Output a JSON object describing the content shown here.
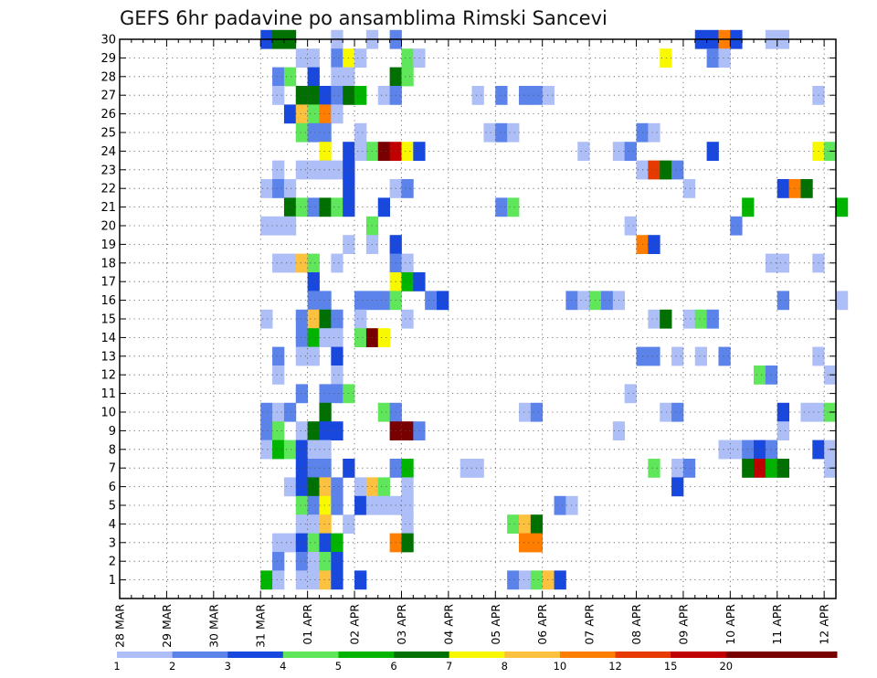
{
  "chart_data": {
    "type": "heatmap",
    "title": "GEFS 6hr padavine po ansamblima Rimski Sancevi",
    "y_ticks": [
      "1",
      "2",
      "3",
      "4",
      "5",
      "6",
      "7",
      "8",
      "9",
      "10",
      "11",
      "12",
      "13",
      "14",
      "15",
      "16",
      "17",
      "18",
      "19",
      "20",
      "21",
      "22",
      "23",
      "24",
      "25",
      "26",
      "27",
      "28",
      "29",
      "30"
    ],
    "x_ticks": [
      "28 MAR",
      "29 MAR",
      "30 MAR",
      "31 MAR",
      "01 APR",
      "02 APR",
      "03 APR",
      "04 APR",
      "05 APR",
      "06 APR",
      "07 APR",
      "08 APR",
      "09 APR",
      "10 APR",
      "11 APR",
      "12 APR"
    ],
    "x_range_steps": [
      0,
      61
    ],
    "y_range": [
      0,
      30
    ],
    "grid": true,
    "legend": {
      "placement": "bottom",
      "labels": [
        "1",
        "2",
        "3",
        "4",
        "5",
        "6",
        "7",
        "8",
        "10",
        "12",
        "15",
        "20"
      ],
      "colors": [
        "#aebff8",
        "#5b83ea",
        "#1848de",
        "#5fe65a",
        "#00b400",
        "#007000",
        "#f8f800",
        "#fbc13f",
        "#ff7e00",
        "#e63a00",
        "#c00000",
        "#780000"
      ]
    },
    "colors": [
      "#ffffff",
      "#aebff8",
      "#5b83ea",
      "#1848de",
      "#5fe65a",
      "#00b400",
      "#007000",
      "#f8f800",
      "#fbc13f",
      "#ff7e00",
      "#e63a00",
      "#c00000",
      "#780000"
    ],
    "cells": [
      [
        12,
        30,
        3
      ],
      [
        13,
        30,
        6
      ],
      [
        14,
        30,
        6
      ],
      [
        18,
        30,
        1
      ],
      [
        21,
        30,
        1
      ],
      [
        23,
        30,
        2
      ],
      [
        49,
        30,
        3
      ],
      [
        50,
        30,
        3
      ],
      [
        51,
        30,
        9
      ],
      [
        52,
        30,
        3
      ],
      [
        55,
        30,
        1
      ],
      [
        56,
        30,
        1
      ],
      [
        15,
        29,
        1
      ],
      [
        16,
        29,
        1
      ],
      [
        18,
        29,
        2
      ],
      [
        19,
        29,
        7
      ],
      [
        20,
        29,
        1
      ],
      [
        24,
        29,
        4
      ],
      [
        25,
        29,
        1
      ],
      [
        46,
        29,
        7
      ],
      [
        50,
        29,
        2
      ],
      [
        51,
        29,
        1
      ],
      [
        13,
        28,
        2
      ],
      [
        14,
        28,
        4
      ],
      [
        16,
        28,
        3
      ],
      [
        18,
        28,
        1
      ],
      [
        19,
        28,
        1
      ],
      [
        23,
        28,
        6
      ],
      [
        24,
        28,
        4
      ],
      [
        13,
        27,
        1
      ],
      [
        15,
        27,
        6
      ],
      [
        16,
        27,
        6
      ],
      [
        17,
        27,
        3
      ],
      [
        18,
        27,
        2
      ],
      [
        19,
        27,
        6
      ],
      [
        20,
        27,
        5
      ],
      [
        22,
        27,
        1
      ],
      [
        23,
        27,
        2
      ],
      [
        30,
        27,
        1
      ],
      [
        32,
        27,
        2
      ],
      [
        34,
        27,
        2
      ],
      [
        35,
        27,
        2
      ],
      [
        36,
        27,
        1
      ],
      [
        59,
        27,
        1
      ],
      [
        14,
        26,
        3
      ],
      [
        15,
        26,
        8
      ],
      [
        16,
        26,
        4
      ],
      [
        17,
        26,
        9
      ],
      [
        18,
        26,
        1
      ],
      [
        15,
        25,
        4
      ],
      [
        16,
        25,
        2
      ],
      [
        17,
        25,
        2
      ],
      [
        20,
        25,
        1
      ],
      [
        31,
        25,
        1
      ],
      [
        32,
        25,
        2
      ],
      [
        33,
        25,
        1
      ],
      [
        44,
        25,
        2
      ],
      [
        45,
        25,
        1
      ],
      [
        17,
        24,
        7
      ],
      [
        19,
        24,
        3
      ],
      [
        20,
        24,
        1
      ],
      [
        21,
        24,
        4
      ],
      [
        22,
        24,
        12
      ],
      [
        23,
        24,
        11
      ],
      [
        24,
        24,
        7
      ],
      [
        25,
        24,
        3
      ],
      [
        39,
        24,
        1
      ],
      [
        42,
        24,
        1
      ],
      [
        43,
        24,
        2
      ],
      [
        50,
        24,
        3
      ],
      [
        59,
        24,
        7
      ],
      [
        60,
        24,
        4
      ],
      [
        13,
        23,
        1
      ],
      [
        15,
        23,
        1
      ],
      [
        16,
        23,
        1
      ],
      [
        17,
        23,
        1
      ],
      [
        18,
        23,
        1
      ],
      [
        19,
        23,
        3
      ],
      [
        44,
        23,
        1
      ],
      [
        45,
        23,
        10
      ],
      [
        46,
        23,
        6
      ],
      [
        47,
        23,
        2
      ],
      [
        12,
        22,
        1
      ],
      [
        13,
        22,
        2
      ],
      [
        14,
        22,
        1
      ],
      [
        19,
        22,
        3
      ],
      [
        23,
        22,
        1
      ],
      [
        24,
        22,
        2
      ],
      [
        48,
        22,
        1
      ],
      [
        56,
        22,
        3
      ],
      [
        57,
        22,
        9
      ],
      [
        58,
        22,
        6
      ],
      [
        14,
        21,
        6
      ],
      [
        15,
        21,
        4
      ],
      [
        16,
        21,
        2
      ],
      [
        17,
        21,
        6
      ],
      [
        18,
        21,
        4
      ],
      [
        19,
        21,
        3
      ],
      [
        22,
        21,
        3
      ],
      [
        32,
        21,
        2
      ],
      [
        33,
        21,
        4
      ],
      [
        53,
        21,
        5
      ],
      [
        61,
        21,
        5
      ],
      [
        12,
        20,
        1
      ],
      [
        13,
        20,
        1
      ],
      [
        14,
        20,
        1
      ],
      [
        21,
        20,
        4
      ],
      [
        43,
        20,
        1
      ],
      [
        52,
        20,
        2
      ],
      [
        19,
        19,
        1
      ],
      [
        21,
        19,
        1
      ],
      [
        23,
        19,
        3
      ],
      [
        44,
        19,
        9
      ],
      [
        45,
        19,
        3
      ],
      [
        13,
        18,
        1
      ],
      [
        14,
        18,
        1
      ],
      [
        15,
        18,
        8
      ],
      [
        16,
        18,
        4
      ],
      [
        18,
        18,
        1
      ],
      [
        23,
        18,
        2
      ],
      [
        24,
        18,
        1
      ],
      [
        55,
        18,
        1
      ],
      [
        56,
        18,
        1
      ],
      [
        59,
        18,
        1
      ],
      [
        16,
        17,
        3
      ],
      [
        23,
        17,
        7
      ],
      [
        24,
        17,
        5
      ],
      [
        25,
        17,
        3
      ],
      [
        16,
        16,
        2
      ],
      [
        17,
        16,
        2
      ],
      [
        20,
        16,
        2
      ],
      [
        21,
        16,
        2
      ],
      [
        22,
        16,
        2
      ],
      [
        23,
        16,
        4
      ],
      [
        26,
        16,
        2
      ],
      [
        27,
        16,
        3
      ],
      [
        38,
        16,
        2
      ],
      [
        39,
        16,
        1
      ],
      [
        40,
        16,
        4
      ],
      [
        41,
        16,
        2
      ],
      [
        42,
        16,
        1
      ],
      [
        56,
        16,
        2
      ],
      [
        61,
        16,
        1
      ],
      [
        12,
        15,
        1
      ],
      [
        15,
        15,
        2
      ],
      [
        16,
        15,
        8
      ],
      [
        17,
        15,
        6
      ],
      [
        18,
        15,
        2
      ],
      [
        20,
        15,
        1
      ],
      [
        24,
        15,
        1
      ],
      [
        45,
        15,
        1
      ],
      [
        46,
        15,
        6
      ],
      [
        48,
        15,
        1
      ],
      [
        49,
        15,
        4
      ],
      [
        50,
        15,
        2
      ],
      [
        15,
        14,
        2
      ],
      [
        16,
        14,
        5
      ],
      [
        17,
        14,
        1
      ],
      [
        18,
        14,
        1
      ],
      [
        20,
        14,
        4
      ],
      [
        21,
        14,
        12
      ],
      [
        22,
        14,
        7
      ],
      [
        13,
        13,
        2
      ],
      [
        15,
        13,
        1
      ],
      [
        16,
        13,
        1
      ],
      [
        18,
        13,
        3
      ],
      [
        44,
        13,
        2
      ],
      [
        45,
        13,
        2
      ],
      [
        47,
        13,
        1
      ],
      [
        49,
        13,
        1
      ],
      [
        51,
        13,
        2
      ],
      [
        59,
        13,
        1
      ],
      [
        13,
        12,
        1
      ],
      [
        18,
        12,
        1
      ],
      [
        54,
        12,
        4
      ],
      [
        55,
        12,
        2
      ],
      [
        60,
        12,
        1
      ],
      [
        15,
        11,
        2
      ],
      [
        17,
        11,
        2
      ],
      [
        18,
        11,
        2
      ],
      [
        19,
        11,
        4
      ],
      [
        43,
        11,
        1
      ],
      [
        12,
        10,
        2
      ],
      [
        13,
        10,
        1
      ],
      [
        14,
        10,
        2
      ],
      [
        17,
        10,
        6
      ],
      [
        22,
        10,
        4
      ],
      [
        23,
        10,
        2
      ],
      [
        34,
        10,
        1
      ],
      [
        35,
        10,
        2
      ],
      [
        46,
        10,
        1
      ],
      [
        47,
        10,
        2
      ],
      [
        56,
        10,
        3
      ],
      [
        58,
        10,
        1
      ],
      [
        59,
        10,
        1
      ],
      [
        60,
        10,
        4
      ],
      [
        12,
        9,
        2
      ],
      [
        13,
        9,
        4
      ],
      [
        15,
        9,
        1
      ],
      [
        16,
        9,
        6
      ],
      [
        17,
        9,
        3
      ],
      [
        18,
        9,
        3
      ],
      [
        23,
        9,
        12
      ],
      [
        24,
        9,
        12
      ],
      [
        25,
        9,
        2
      ],
      [
        42,
        9,
        1
      ],
      [
        56,
        9,
        1
      ],
      [
        12,
        8,
        1
      ],
      [
        13,
        8,
        5
      ],
      [
        14,
        8,
        4
      ],
      [
        15,
        8,
        3
      ],
      [
        16,
        8,
        1
      ],
      [
        17,
        8,
        1
      ],
      [
        51,
        8,
        1
      ],
      [
        52,
        8,
        1
      ],
      [
        53,
        8,
        2
      ],
      [
        54,
        8,
        3
      ],
      [
        55,
        8,
        2
      ],
      [
        59,
        8,
        3
      ],
      [
        60,
        8,
        1
      ],
      [
        15,
        7,
        3
      ],
      [
        16,
        7,
        2
      ],
      [
        17,
        7,
        2
      ],
      [
        19,
        7,
        3
      ],
      [
        23,
        7,
        2
      ],
      [
        24,
        7,
        5
      ],
      [
        29,
        7,
        1
      ],
      [
        30,
        7,
        1
      ],
      [
        45,
        7,
        4
      ],
      [
        47,
        7,
        1
      ],
      [
        48,
        7,
        2
      ],
      [
        53,
        7,
        6
      ],
      [
        54,
        7,
        11
      ],
      [
        55,
        7,
        5
      ],
      [
        56,
        7,
        6
      ],
      [
        60,
        7,
        1
      ],
      [
        14,
        6,
        1
      ],
      [
        15,
        6,
        3
      ],
      [
        16,
        6,
        6
      ],
      [
        17,
        6,
        8
      ],
      [
        18,
        6,
        2
      ],
      [
        20,
        6,
        1
      ],
      [
        21,
        6,
        8
      ],
      [
        22,
        6,
        4
      ],
      [
        24,
        6,
        1
      ],
      [
        47,
        6,
        3
      ],
      [
        15,
        5,
        4
      ],
      [
        16,
        5,
        2
      ],
      [
        17,
        5,
        7
      ],
      [
        18,
        5,
        2
      ],
      [
        20,
        5,
        3
      ],
      [
        21,
        5,
        1
      ],
      [
        22,
        5,
        1
      ],
      [
        23,
        5,
        1
      ],
      [
        24,
        5,
        1
      ],
      [
        37,
        5,
        2
      ],
      [
        38,
        5,
        1
      ],
      [
        15,
        4,
        1
      ],
      [
        16,
        4,
        1
      ],
      [
        17,
        4,
        8
      ],
      [
        19,
        4,
        1
      ],
      [
        24,
        4,
        1
      ],
      [
        33,
        4,
        4
      ],
      [
        34,
        4,
        8
      ],
      [
        35,
        4,
        6
      ],
      [
        13,
        3,
        1
      ],
      [
        14,
        3,
        1
      ],
      [
        15,
        3,
        3
      ],
      [
        16,
        3,
        4
      ],
      [
        17,
        3,
        3
      ],
      [
        18,
        3,
        5
      ],
      [
        23,
        3,
        9
      ],
      [
        24,
        3,
        6
      ],
      [
        34,
        3,
        9
      ],
      [
        35,
        3,
        9
      ],
      [
        13,
        2,
        2
      ],
      [
        15,
        2,
        2
      ],
      [
        16,
        2,
        1
      ],
      [
        17,
        2,
        4
      ],
      [
        18,
        2,
        3
      ],
      [
        12,
        1,
        5
      ],
      [
        13,
        1,
        1
      ],
      [
        15,
        1,
        1
      ],
      [
        16,
        1,
        1
      ],
      [
        17,
        1,
        8
      ],
      [
        18,
        1,
        3
      ],
      [
        20,
        1,
        3
      ],
      [
        33,
        1,
        2
      ],
      [
        34,
        1,
        1
      ],
      [
        35,
        1,
        4
      ],
      [
        36,
        1,
        8
      ],
      [
        37,
        1,
        3
      ]
    ]
  }
}
